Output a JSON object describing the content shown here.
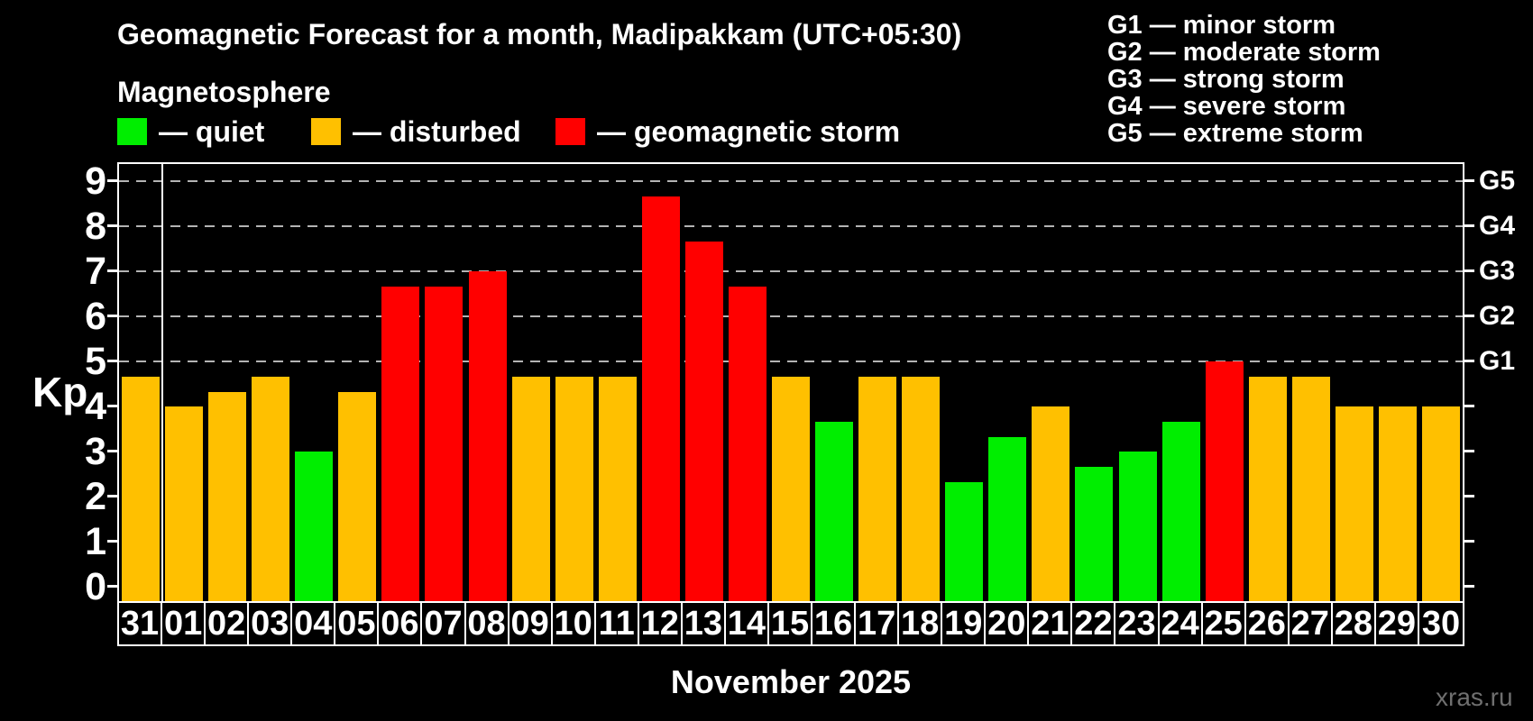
{
  "title": "Geomagnetic Forecast for a month, Madipakkam (UTC+05:30)",
  "subtitle": "Magnetosphere",
  "status_legend": [
    {
      "key": "quiet",
      "label": "— quiet",
      "color": "#00ee00"
    },
    {
      "key": "disturbed",
      "label": "— disturbed",
      "color": "#ffc000"
    },
    {
      "key": "storm",
      "label": "— geomagnetic storm",
      "color": "#ff0000"
    }
  ],
  "g_scale_legend": [
    "G1 — minor storm",
    "G2 — moderate storm",
    "G3 — strong storm",
    "G4 — severe storm",
    "G5 — extreme storm"
  ],
  "watermark": "xras.ru",
  "chart_data": {
    "type": "bar",
    "title": "Geomagnetic Forecast for a month, Madipakkam (UTC+05:30)",
    "ylabel": "Kp",
    "xlabel": "November 2025",
    "ylim": [
      0,
      9.4
    ],
    "yticks": [
      0,
      1,
      2,
      3,
      4,
      5,
      6,
      7,
      8,
      9
    ],
    "gridlines_at": [
      5,
      6,
      7,
      8,
      9
    ],
    "grid": "dashed horizontal lines at Kp 5-9 only",
    "legend_position": "top",
    "right_axis_labels": [
      {
        "kp": 5,
        "label": "G1"
      },
      {
        "kp": 6,
        "label": "G2"
      },
      {
        "kp": 7,
        "label": "G3"
      },
      {
        "kp": 8,
        "label": "G4"
      },
      {
        "kp": 9,
        "label": "G5"
      }
    ],
    "categories": [
      "31",
      "01",
      "02",
      "03",
      "04",
      "05",
      "06",
      "07",
      "08",
      "09",
      "10",
      "11",
      "12",
      "13",
      "14",
      "15",
      "16",
      "17",
      "18",
      "19",
      "20",
      "21",
      "22",
      "23",
      "24",
      "25",
      "26",
      "27",
      "28",
      "29",
      "30"
    ],
    "values": [
      4.67,
      4,
      4.33,
      4.67,
      3,
      4.33,
      6.67,
      6.67,
      7,
      4.67,
      4.67,
      4.67,
      8.67,
      7.67,
      6.67,
      4.67,
      3.67,
      4.67,
      4.67,
      2.33,
      3.33,
      4,
      2.67,
      3,
      3.67,
      5,
      4.67,
      4.67,
      4,
      4,
      4
    ],
    "statuses": [
      "disturbed",
      "disturbed",
      "disturbed",
      "disturbed",
      "quiet",
      "disturbed",
      "storm",
      "storm",
      "storm",
      "disturbed",
      "disturbed",
      "disturbed",
      "storm",
      "storm",
      "storm",
      "disturbed",
      "quiet",
      "disturbed",
      "disturbed",
      "quiet",
      "quiet",
      "disturbed",
      "quiet",
      "quiet",
      "quiet",
      "storm",
      "disturbed",
      "disturbed",
      "disturbed",
      "disturbed",
      "disturbed"
    ],
    "status_colors": {
      "quiet": "#00ee00",
      "disturbed": "#ffc000",
      "storm": "#ff0000"
    },
    "month_separator_after_index": 0
  }
}
